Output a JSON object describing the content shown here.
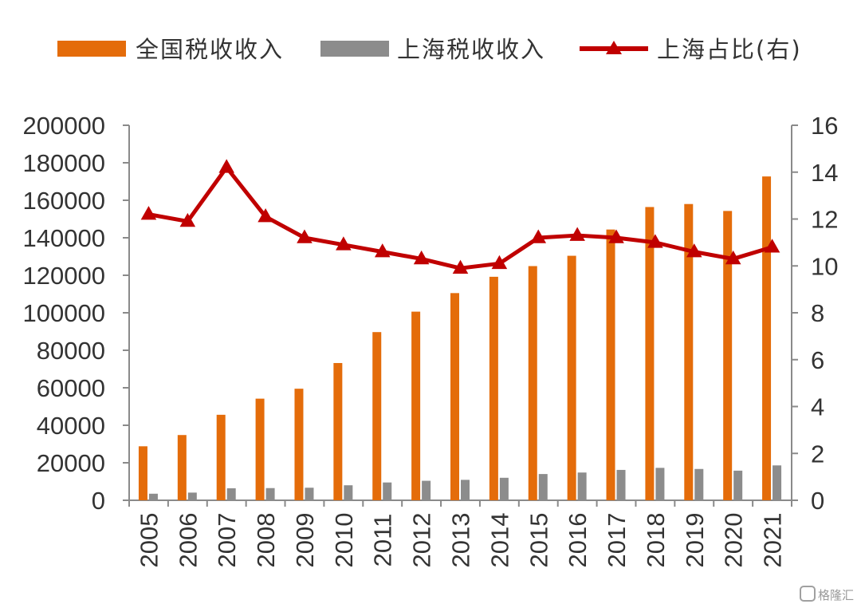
{
  "chart_data": {
    "type": "bar",
    "categories": [
      "2005",
      "2006",
      "2007",
      "2008",
      "2009",
      "2010",
      "2011",
      "2012",
      "2013",
      "2014",
      "2015",
      "2016",
      "2017",
      "2018",
      "2019",
      "2020",
      "2021"
    ],
    "series": [
      {
        "name": "全国税收收入",
        "kind": "bar",
        "axis": "left",
        "color": "#E46C0A",
        "values": [
          28800,
          34800,
          45600,
          54200,
          59500,
          73200,
          89700,
          100600,
          110500,
          119200,
          124900,
          130400,
          144400,
          156400,
          158000,
          154300,
          172700
        ]
      },
      {
        "name": "上海税收收入",
        "kind": "bar",
        "axis": "left",
        "color": "#8C8C8C",
        "values": [
          3500,
          4100,
          6400,
          6500,
          6700,
          8000,
          9500,
          10400,
          10900,
          12000,
          14000,
          14800,
          16200,
          17300,
          16700,
          15800,
          18600
        ]
      },
      {
        "name": "上海占比(右)",
        "kind": "line",
        "axis": "right",
        "color": "#C00000",
        "values": [
          12.2,
          11.9,
          14.2,
          12.1,
          11.2,
          10.9,
          10.6,
          10.3,
          9.9,
          10.1,
          11.2,
          11.3,
          11.2,
          11.0,
          10.6,
          10.3,
          10.8
        ]
      }
    ],
    "title": "",
    "xlabel": "",
    "ylabel": "",
    "y_left": {
      "ylim": [
        0,
        200000
      ],
      "ticks": [
        "0",
        "20000",
        "40000",
        "60000",
        "80000",
        "100000",
        "120000",
        "140000",
        "160000",
        "180000",
        "200000"
      ]
    },
    "y_right": {
      "ylim": [
        0,
        16
      ],
      "ticks": [
        "0",
        "2",
        "4",
        "6",
        "8",
        "10",
        "12",
        "14",
        "16"
      ]
    },
    "grid": false,
    "legend_position": "top"
  },
  "watermark": {
    "icon": "gelonghui-logo-icon",
    "text": "格隆汇"
  }
}
